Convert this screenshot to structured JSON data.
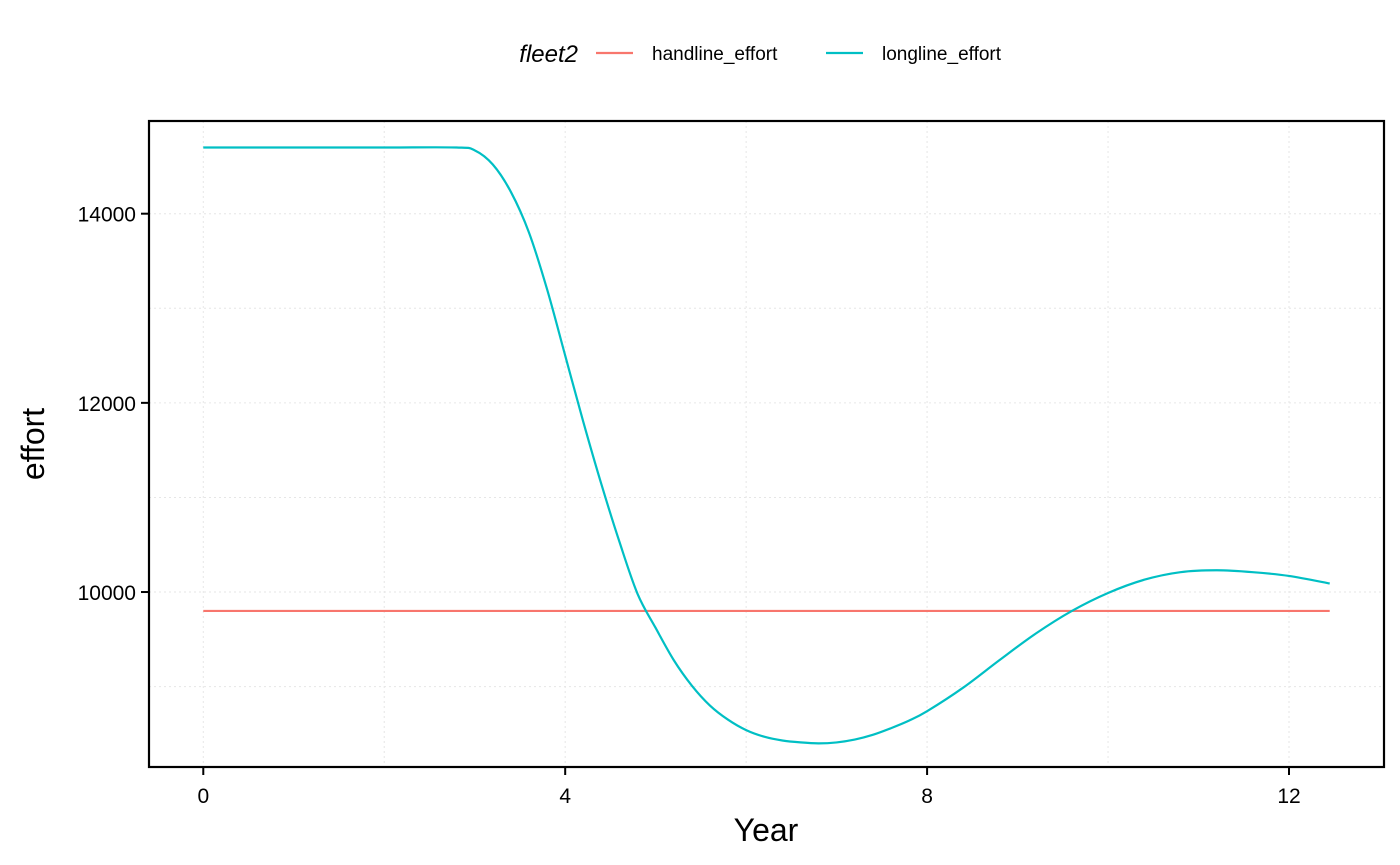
{
  "chart_data": {
    "type": "line",
    "title": "",
    "xlabel": "Year",
    "ylabel": "effort",
    "xlim": [
      -0.6,
      13.05
    ],
    "ylim": [
      8150,
      14980
    ],
    "xticks": [
      0,
      4,
      8,
      12
    ],
    "xtick_labels": [
      "0",
      "4",
      "8",
      "12"
    ],
    "yticks": [
      10000,
      12000,
      14000
    ],
    "ytick_labels": [
      "10000",
      "12000",
      "14000"
    ],
    "grid": true,
    "legend": {
      "title": "fleet2",
      "placement": "top",
      "entries": [
        "handline_effort",
        "longline_effort"
      ]
    },
    "series": [
      {
        "name": "handline_effort",
        "color": "#F8766D",
        "x": [
          0,
          12.45
        ],
        "y": [
          9800,
          9800
        ]
      },
      {
        "name": "longline_effort",
        "color": "#00BFC4",
        "x": [
          0,
          1,
          2,
          2.8,
          3.0,
          3.2,
          3.4,
          3.6,
          3.8,
          4.0,
          4.2,
          4.4,
          4.6,
          4.8,
          5.0,
          5.2,
          5.4,
          5.6,
          5.8,
          6.0,
          6.2,
          6.4,
          6.6,
          6.8,
          7.0,
          7.2,
          7.4,
          7.6,
          7.8,
          8.0,
          8.4,
          8.8,
          9.2,
          9.6,
          10.0,
          10.4,
          10.8,
          11.2,
          11.6,
          12.0,
          12.45
        ],
        "y": [
          14700,
          14700,
          14700,
          14700,
          14670,
          14520,
          14230,
          13800,
          13200,
          12500,
          11800,
          11140,
          10530,
          9980,
          9620,
          9280,
          9010,
          8800,
          8650,
          8540,
          8470,
          8430,
          8410,
          8400,
          8410,
          8440,
          8490,
          8560,
          8640,
          8740,
          8990,
          9280,
          9560,
          9800,
          9990,
          10130,
          10210,
          10230,
          10210,
          10170,
          10090
        ]
      }
    ]
  }
}
